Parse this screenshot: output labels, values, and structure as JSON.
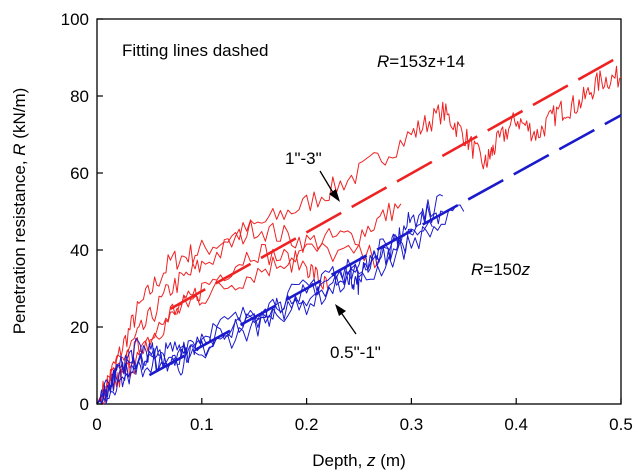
{
  "chart_data": {
    "type": "line",
    "xlabel_prefix": "Depth, ",
    "xlabel_var": "z",
    "xlabel_suffix": " (m)",
    "ylabel_prefix": "Penetration resistance, ",
    "ylabel_var": "R",
    "ylabel_suffix": " (kN/m)",
    "xlim": [
      0,
      0.5
    ],
    "ylim": [
      0,
      100
    ],
    "xticks": [
      "0",
      "0.1",
      "0.2",
      "0.3",
      "0.4",
      "0.5"
    ],
    "yticks": [
      "0",
      "20",
      "40",
      "60",
      "80",
      "100"
    ],
    "grid": false,
    "annotations": {
      "note": "Fitting lines dashed",
      "red_fit_var": "R",
      "red_fit_text": "=153z+14",
      "blue_fit_var": "R",
      "blue_fit_text": "=150",
      "blue_fit_z": "z",
      "red_group": "1\"-3\"",
      "blue_group": "0.5\"-1\""
    },
    "colors": {
      "red": "#ee2222",
      "blue": "#1a1acc",
      "axis": "#000000"
    },
    "fit_lines": [
      {
        "group": "1\"-3\"",
        "color": "red",
        "x": [
          0.07,
          0.5
        ],
        "y": [
          24.7,
          90.5
        ]
      },
      {
        "group": "0.5\"-1\"",
        "color": "blue",
        "x": [
          0.05,
          0.5
        ],
        "y": [
          7.5,
          75.0
        ]
      }
    ],
    "series": [
      {
        "group": "1\"-3\"",
        "color": "red",
        "x": [
          0,
          0.02,
          0.04,
          0.07,
          0.1,
          0.15,
          0.2,
          0.25,
          0.3,
          0.33,
          0.35,
          0.37,
          0.38,
          0.4,
          0.42,
          0.44,
          0.46,
          0.48,
          0.5
        ],
        "y": [
          0,
          12,
          25,
          37,
          40,
          46,
          52,
          60,
          70,
          76,
          70,
          62,
          67,
          74,
          70,
          76,
          78,
          84,
          85
        ]
      },
      {
        "group": "1\"-3\"",
        "color": "red",
        "x": [
          0,
          0.02,
          0.04,
          0.07,
          0.1,
          0.15,
          0.2,
          0.25,
          0.29
        ],
        "y": [
          0,
          10,
          18,
          30,
          36,
          46,
          42,
          44,
          52
        ]
      },
      {
        "group": "1\"-3\"",
        "color": "red",
        "x": [
          0,
          0.02,
          0.04,
          0.07,
          0.1,
          0.15,
          0.2,
          0.22
        ],
        "y": [
          0,
          8,
          15,
          22,
          30,
          40,
          36,
          30
        ]
      },
      {
        "group": "1\"-3\"",
        "color": "red",
        "x": [
          0,
          0.02,
          0.04,
          0.07,
          0.1,
          0.15,
          0.2,
          0.27
        ],
        "y": [
          0,
          6,
          12,
          24,
          28,
          34,
          40,
          38
        ]
      },
      {
        "group": "0.5\"-1\"",
        "color": "blue",
        "x": [
          0,
          0.02,
          0.04,
          0.06,
          0.1,
          0.15,
          0.2,
          0.25,
          0.28,
          0.3,
          0.33
        ],
        "y": [
          0,
          9,
          15,
          12,
          14,
          22,
          30,
          36,
          40,
          48,
          50
        ]
      },
      {
        "group": "0.5\"-1\"",
        "color": "blue",
        "x": [
          0,
          0.02,
          0.04,
          0.07,
          0.1,
          0.15,
          0.2,
          0.25,
          0.29,
          0.33
        ],
        "y": [
          0,
          8,
          12,
          10,
          14,
          20,
          28,
          36,
          44,
          54
        ]
      },
      {
        "group": "0.5\"-1\"",
        "color": "blue",
        "x": [
          0,
          0.02,
          0.05,
          0.07,
          0.1,
          0.15,
          0.2,
          0.24,
          0.25,
          0.3,
          0.35
        ],
        "y": [
          0,
          6,
          10,
          14,
          18,
          24,
          30,
          34,
          31,
          42,
          50
        ]
      },
      {
        "group": "0.5\"-1\"",
        "color": "blue",
        "x": [
          0,
          0.02,
          0.05,
          0.08,
          0.1,
          0.15,
          0.2,
          0.25,
          0.28,
          0.32
        ],
        "y": [
          0,
          8,
          12,
          10,
          16,
          22,
          26,
          34,
          40,
          46
        ]
      }
    ]
  }
}
